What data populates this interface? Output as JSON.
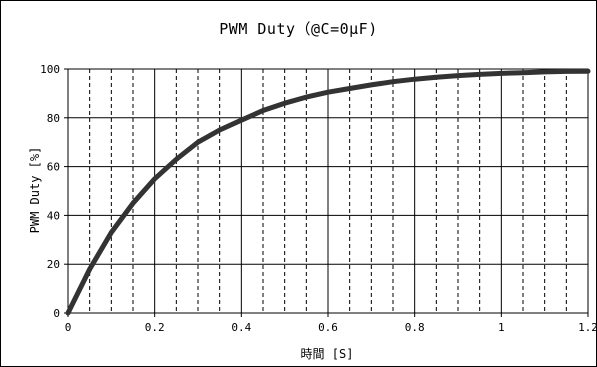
{
  "chart_data": {
    "type": "line",
    "title": "PWM Duty（@C=0μF)",
    "xlabel": "時間  [S]",
    "ylabel": "PWM Duty  [%]",
    "xlim": [
      0,
      1.2
    ],
    "ylim": [
      0,
      100
    ],
    "x_ticks": [
      "0",
      "0.2",
      "0.4",
      "0.6",
      "0.8",
      "1",
      "1.2"
    ],
    "y_ticks": [
      "0",
      "20",
      "40",
      "60",
      "80",
      "100"
    ],
    "grid": true,
    "legend": "none",
    "series": [
      {
        "x": [
          0,
          0.05,
          0.1,
          0.15,
          0.2,
          0.25,
          0.3,
          0.35,
          0.4,
          0.45,
          0.5,
          0.55,
          0.6,
          0.65,
          0.7,
          0.75,
          0.8,
          0.85,
          0.9,
          0.95,
          1.0,
          1.05,
          1.1,
          1.15,
          1.2
        ],
        "values": [
          0,
          18,
          33,
          45,
          55,
          63,
          70,
          75,
          79,
          83,
          86,
          88.5,
          90.5,
          92,
          93.5,
          94.8,
          95.8,
          96.6,
          97.3,
          97.8,
          98.2,
          98.5,
          98.8,
          99.0,
          99.1
        ]
      }
    ],
    "colors": {
      "line": "#333333",
      "grid": "#000000",
      "axis": "#000000"
    }
  }
}
